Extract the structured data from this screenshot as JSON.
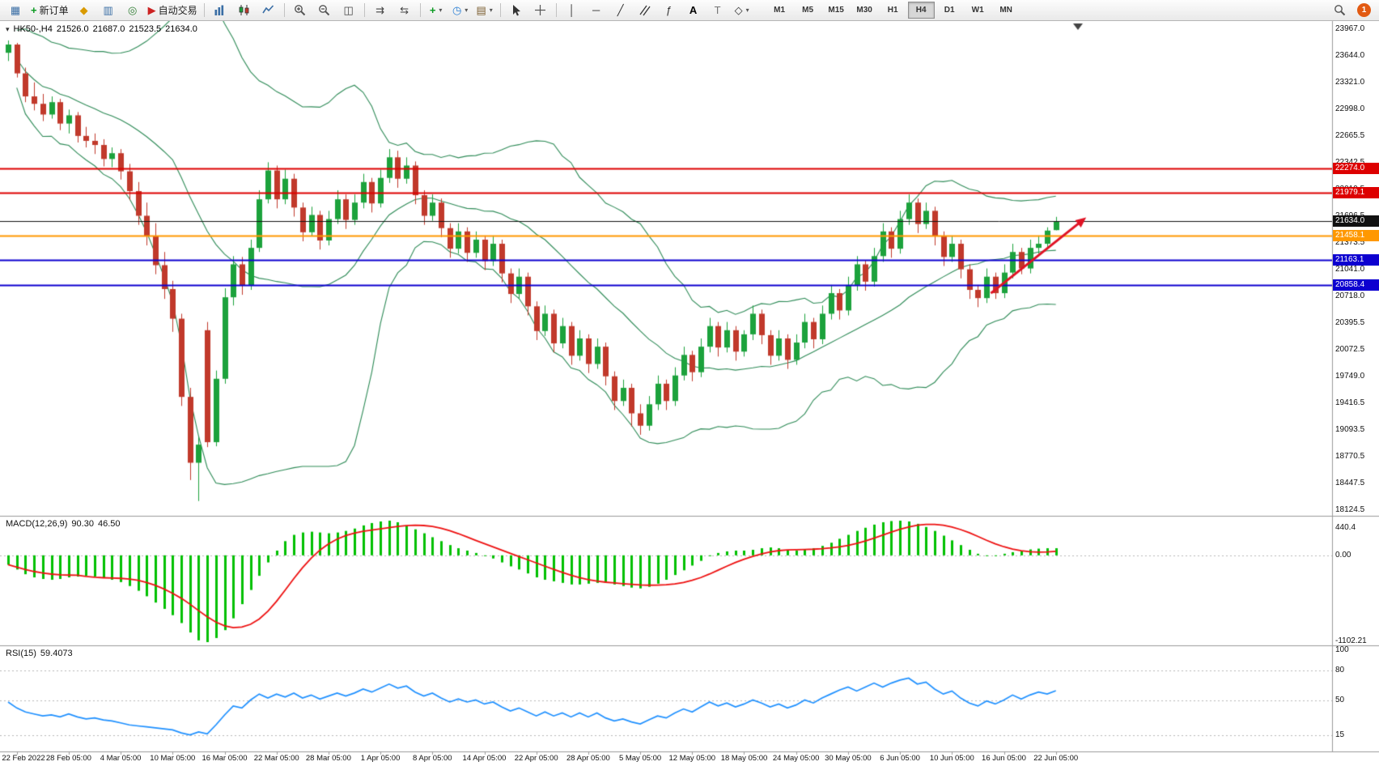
{
  "toolbar": {
    "groups": [
      {
        "items": [
          {
            "name": "chart-window-icon"
          },
          {
            "name": "new-order-icon",
            "label": "新订单"
          },
          {
            "name": "market-watch-icon"
          },
          {
            "name": "data-window-icon"
          },
          {
            "name": "strategy-tester-icon"
          },
          {
            "name": "autotrading-icon",
            "label": "自动交易"
          }
        ]
      },
      {
        "items": [
          {
            "name": "bar-chart-icon"
          },
          {
            "name": "candlestick-chart-icon"
          },
          {
            "name": "line-chart-icon"
          }
        ]
      },
      {
        "items": [
          {
            "name": "zoom-in-icon"
          },
          {
            "name": "zoom-out-icon"
          },
          {
            "name": "tile-windows-icon"
          }
        ]
      },
      {
        "items": [
          {
            "name": "auto-scroll-icon"
          },
          {
            "name": "chart-shift-icon"
          }
        ]
      },
      {
        "items": [
          {
            "name": "add-indicator-icon",
            "caret": true
          },
          {
            "name": "period-selector-icon",
            "caret": true
          },
          {
            "name": "template-icon",
            "caret": true
          }
        ]
      },
      {
        "items": [
          {
            "name": "cursor-icon"
          },
          {
            "name": "crosshair-icon"
          }
        ]
      },
      {
        "items": [
          {
            "name": "vertical-line-icon"
          },
          {
            "name": "horizontal-line-icon"
          },
          {
            "name": "trendline-icon"
          },
          {
            "name": "equidistant-channel-icon"
          },
          {
            "name": "fibonacci-icon"
          },
          {
            "name": "text-icon",
            "label": "A"
          },
          {
            "name": "text-label-icon"
          },
          {
            "name": "shapes-icon",
            "caret": true
          }
        ]
      }
    ],
    "timeframes": [
      "M1",
      "M5",
      "M15",
      "M30",
      "H1",
      "H4",
      "D1",
      "W1",
      "MN"
    ],
    "active_timeframe": "H4",
    "notification_count": "1"
  },
  "chart": {
    "symbol_period": "HK50-,H4",
    "open": "21526.0",
    "high": "21687.0",
    "low": "21523.5",
    "close": "21634.0"
  },
  "price_axis": {
    "ticks": [
      "23967.0",
      "23644.0",
      "23321.0",
      "22998.0",
      "22665.5",
      "22342.5",
      "22019.5",
      "21696.5",
      "21373.5",
      "21041.0",
      "20718.0",
      "20395.5",
      "20072.5",
      "19749.0",
      "19416.5",
      "19093.5",
      "18770.5",
      "18447.5",
      "18124.5"
    ]
  },
  "price_lines": [
    {
      "label": "22274.0",
      "price": 22274.0,
      "color": "#dd0000",
      "width": 2,
      "kind": "resistance"
    },
    {
      "label": "21979.1",
      "price": 21979.1,
      "color": "#dd0000",
      "width": 2,
      "kind": "resistance"
    },
    {
      "label": "21634.0",
      "price": 21634.0,
      "color": "#111111",
      "width": 1,
      "kind": "current-price"
    },
    {
      "label": "21458.1",
      "price": 21458.1,
      "color": "#ff9800",
      "width": 2,
      "kind": "pivot"
    },
    {
      "label": "21163.1",
      "price": 21163.1,
      "color": "#0d00d0",
      "width": 2,
      "kind": "support"
    },
    {
      "label": "20858.4",
      "price": 20858.4,
      "color": "#0d00d0",
      "width": 2,
      "kind": "support"
    }
  ],
  "annotation_arrow": {
    "from_index": 113.5,
    "from_price": 20760,
    "to_index": 124.5,
    "to_price": 21680,
    "color": "#e01325"
  },
  "indicators": {
    "macd": {
      "title": "MACD(12,26,9)",
      "value_main": "90.30",
      "value_signal": "46.50",
      "axis_max_label": "440.4",
      "axis_zero_label": "0.00",
      "axis_min_label": "-1102.21",
      "axis_max": 440.4,
      "axis_min": -1102.21
    },
    "rsi": {
      "title": "RSI(15)",
      "value": "59.4073",
      "levels": [
        80,
        50,
        15
      ],
      "axis_labels": [
        "100",
        "80",
        "50",
        "15"
      ]
    }
  },
  "time_axis": {
    "first_index": 1,
    "step": 6,
    "labels": [
      "22 Feb 2022",
      "28 Feb 05:00",
      "4 Mar 05:00",
      "10 Mar 05:00",
      "16 Mar 05:00",
      "22 Mar 05:00",
      "28 Mar 05:00",
      "1 Apr 05:00",
      "8 Apr 05:00",
      "14 Apr 05:00",
      "22 Apr 05:00",
      "28 Apr 05:00",
      "5 May 05:00",
      "12 May 05:00",
      "18 May 05:00",
      "24 May 05:00",
      "30 May 05:00",
      "6 Jun 05:00",
      "10 Jun 05:00",
      "16 Jun 05:00",
      "22 Jun 05:00"
    ]
  },
  "colors": {
    "bull": "#1ca23c",
    "bear": "#c1392b",
    "bollinger": "#2e8b57",
    "macd_histogram": "#00c000",
    "macd_signal": "#ee1111",
    "rsi_line": "#1e90ff",
    "grid_dash": "#b8b8b8",
    "frame": "#9a9a9a"
  },
  "chart_data": {
    "type": "candlestick",
    "symbol": "HK50-",
    "period": "H4",
    "price_range": [
      18124.5,
      23967.0
    ],
    "overlays": {
      "bollinger_period": 20,
      "bollinger_deviation": 2
    },
    "candles": [
      [
        23680,
        23830,
        23580,
        23780
      ],
      [
        23780,
        23800,
        23380,
        23430
      ],
      [
        23430,
        23500,
        23080,
        23150
      ],
      [
        23150,
        23320,
        22980,
        23060
      ],
      [
        23060,
        23180,
        22850,
        22930
      ],
      [
        22930,
        23150,
        22880,
        23080
      ],
      [
        23080,
        23120,
        22740,
        22820
      ],
      [
        22820,
        22990,
        22700,
        22920
      ],
      [
        22920,
        22960,
        22590,
        22670
      ],
      [
        22670,
        22780,
        22530,
        22610
      ],
      [
        22610,
        22700,
        22450,
        22560
      ],
      [
        22560,
        22630,
        22300,
        22390
      ],
      [
        22390,
        22530,
        22290,
        22460
      ],
      [
        22460,
        22510,
        22140,
        22240
      ],
      [
        22240,
        22330,
        21890,
        22000
      ],
      [
        22000,
        22110,
        21590,
        21700
      ],
      [
        21700,
        21860,
        21340,
        21450
      ],
      [
        21450,
        21610,
        20990,
        21100
      ],
      [
        21100,
        21260,
        20690,
        20810
      ],
      [
        20810,
        20910,
        20290,
        20450
      ],
      [
        20450,
        20510,
        19390,
        19500
      ],
      [
        19500,
        19610,
        18490,
        18700
      ],
      [
        18700,
        19010,
        18235,
        18920
      ],
      [
        20310,
        20410,
        18890,
        18950
      ],
      [
        18950,
        19820,
        18900,
        19720
      ],
      [
        19720,
        20820,
        19660,
        20710
      ],
      [
        20710,
        21210,
        20610,
        21110
      ],
      [
        21110,
        21200,
        20740,
        20850
      ],
      [
        20850,
        21410,
        20800,
        21310
      ],
      [
        21310,
        22010,
        21260,
        21900
      ],
      [
        21900,
        22350,
        21850,
        22250
      ],
      [
        22250,
        22310,
        21790,
        21900
      ],
      [
        21900,
        22260,
        21840,
        22150
      ],
      [
        22150,
        22210,
        21690,
        21800
      ],
      [
        21800,
        21860,
        21390,
        21500
      ],
      [
        21500,
        21810,
        21450,
        21710
      ],
      [
        21710,
        21760,
        21290,
        21400
      ],
      [
        21400,
        21760,
        21340,
        21660
      ],
      [
        21660,
        22010,
        21600,
        21900
      ],
      [
        21900,
        21960,
        21540,
        21650
      ],
      [
        21650,
        21960,
        21590,
        21860
      ],
      [
        21860,
        22210,
        21790,
        22110
      ],
      [
        22110,
        22160,
        21740,
        21850
      ],
      [
        21850,
        22260,
        21800,
        22160
      ],
      [
        22160,
        22510,
        22100,
        22410
      ],
      [
        22410,
        22490,
        22040,
        22150
      ],
      [
        22150,
        22410,
        22090,
        22310
      ],
      [
        22310,
        22360,
        21840,
        21950
      ],
      [
        21950,
        22010,
        21590,
        21700
      ],
      [
        21700,
        21960,
        21640,
        21860
      ],
      [
        21860,
        21910,
        21440,
        21550
      ],
      [
        21550,
        21610,
        21190,
        21300
      ],
      [
        21300,
        21610,
        21240,
        21510
      ],
      [
        21510,
        21560,
        21140,
        21250
      ],
      [
        21250,
        21510,
        21190,
        21410
      ],
      [
        21410,
        21460,
        21040,
        21150
      ],
      [
        21150,
        21460,
        21090,
        21360
      ],
      [
        21360,
        21410,
        20890,
        21000
      ],
      [
        21000,
        21060,
        20640,
        20750
      ],
      [
        20750,
        21060,
        20690,
        20960
      ],
      [
        20960,
        21010,
        20490,
        20600
      ],
      [
        20600,
        20660,
        20190,
        20300
      ],
      [
        20300,
        20610,
        20240,
        20510
      ],
      [
        20510,
        20560,
        20040,
        20150
      ],
      [
        20150,
        20460,
        20090,
        20360
      ],
      [
        20360,
        20410,
        19890,
        20000
      ],
      [
        20000,
        20310,
        19940,
        20210
      ],
      [
        20210,
        20260,
        19790,
        19900
      ],
      [
        19900,
        20210,
        19840,
        20110
      ],
      [
        20110,
        20160,
        19640,
        19750
      ],
      [
        19750,
        19810,
        19340,
        19450
      ],
      [
        19450,
        19710,
        19390,
        19610
      ],
      [
        19610,
        19660,
        19140,
        19300
      ],
      [
        19300,
        19410,
        19040,
        19150
      ],
      [
        19150,
        19510,
        19090,
        19410
      ],
      [
        19410,
        19760,
        19340,
        19660
      ],
      [
        19660,
        19710,
        19340,
        19450
      ],
      [
        19450,
        19860,
        19390,
        19760
      ],
      [
        19760,
        20110,
        19700,
        20010
      ],
      [
        20010,
        20060,
        19690,
        19800
      ],
      [
        19800,
        20210,
        19740,
        20110
      ],
      [
        20110,
        20460,
        20040,
        20360
      ],
      [
        20360,
        20410,
        19990,
        20100
      ],
      [
        20100,
        20410,
        20040,
        20310
      ],
      [
        20310,
        20360,
        19940,
        20050
      ],
      [
        20050,
        20310,
        19990,
        20260
      ],
      [
        20260,
        20610,
        20190,
        20510
      ],
      [
        20510,
        20560,
        20140,
        20250
      ],
      [
        20250,
        20310,
        19890,
        20000
      ],
      [
        20000,
        20310,
        19940,
        20210
      ],
      [
        20210,
        20260,
        19840,
        19950
      ],
      [
        19950,
        20260,
        19890,
        20160
      ],
      [
        20160,
        20510,
        20090,
        20410
      ],
      [
        20410,
        20460,
        20090,
        20200
      ],
      [
        20200,
        20610,
        20140,
        20510
      ],
      [
        20510,
        20860,
        20440,
        20760
      ],
      [
        20760,
        20810,
        20440,
        20550
      ],
      [
        20550,
        20960,
        20490,
        20860
      ],
      [
        20860,
        21210,
        20790,
        21110
      ],
      [
        21110,
        21160,
        20790,
        20900
      ],
      [
        20900,
        21310,
        20840,
        21210
      ],
      [
        21210,
        21610,
        21140,
        21510
      ],
      [
        21510,
        21560,
        21190,
        21300
      ],
      [
        21300,
        21760,
        21240,
        21660
      ],
      [
        21660,
        21960,
        21590,
        21860
      ],
      [
        21860,
        21910,
        21490,
        21600
      ],
      [
        21600,
        21860,
        21540,
        21760
      ],
      [
        21760,
        21810,
        21340,
        21450
      ],
      [
        21450,
        21510,
        21090,
        21200
      ],
      [
        21200,
        21460,
        21140,
        21360
      ],
      [
        21360,
        21410,
        20940,
        21050
      ],
      [
        21050,
        21110,
        20690,
        20800
      ],
      [
        20800,
        20860,
        20590,
        20700
      ],
      [
        20700,
        21060,
        20640,
        20960
      ],
      [
        20960,
        21010,
        20690,
        20760
      ],
      [
        20760,
        21110,
        20700,
        21010
      ],
      [
        21010,
        21360,
        20940,
        21260
      ],
      [
        21260,
        21310,
        20990,
        21060
      ],
      [
        21060,
        21410,
        21000,
        21310
      ],
      [
        21310,
        21460,
        21240,
        21360
      ],
      [
        21360,
        21560,
        21290,
        21520
      ],
      [
        21526,
        21687,
        21523.5,
        21634
      ]
    ],
    "sub_indicators": {
      "macd_histogram": [
        -120,
        -180,
        -240,
        -280,
        -300,
        -310,
        -300,
        -280,
        -270,
        -260,
        -270,
        -290,
        -310,
        -340,
        -390,
        -450,
        -520,
        -600,
        -680,
        -760,
        -860,
        -980,
        -1080,
        -1102,
        -1050,
        -950,
        -800,
        -620,
        -440,
        -260,
        -90,
        60,
        180,
        260,
        290,
        300,
        290,
        280,
        290,
        310,
        340,
        380,
        410,
        430,
        440,
        420,
        380,
        330,
        280,
        230,
        180,
        130,
        90,
        60,
        30,
        0,
        -40,
        -90,
        -140,
        -180,
        -230,
        -280,
        -310,
        -330,
        -350,
        -370,
        -370,
        -360,
        -350,
        -350,
        -370,
        -390,
        -410,
        -420,
        -400,
        -360,
        -310,
        -250,
        -190,
        -130,
        -70,
        -10,
        30,
        50,
        60,
        60,
        70,
        90,
        100,
        90,
        70,
        60,
        70,
        90,
        120,
        160,
        210,
        260,
        310,
        350,
        390,
        420,
        435,
        440,
        430,
        400,
        360,
        310,
        250,
        190,
        130,
        70,
        20,
        -10,
        0,
        20,
        40,
        60,
        75,
        85,
        90,
        90.3
      ],
      "rsi": [
        48,
        42,
        38,
        36,
        34,
        35,
        33,
        36,
        33,
        31,
        32,
        30,
        29,
        27,
        25,
        24,
        23,
        22,
        21,
        20,
        17,
        15,
        18,
        16,
        25,
        35,
        44,
        42,
        50,
        56,
        52,
        56,
        53,
        57,
        52,
        55,
        51,
        54,
        57,
        54,
        57,
        61,
        58,
        62,
        66,
        62,
        64,
        58,
        54,
        57,
        52,
        48,
        51,
        48,
        50,
        46,
        48,
        43,
        39,
        42,
        38,
        34,
        38,
        34,
        37,
        33,
        37,
        33,
        37,
        32,
        29,
        31,
        28,
        26,
        30,
        34,
        32,
        37,
        41,
        38,
        43,
        48,
        44,
        47,
        43,
        46,
        50,
        47,
        43,
        46,
        42,
        45,
        50,
        47,
        52,
        56,
        60,
        63,
        59,
        63,
        67,
        63,
        67,
        70,
        72,
        66,
        68,
        61,
        56,
        59,
        52,
        47,
        44,
        49,
        46,
        50,
        55,
        51,
        55,
        58,
        56,
        59.41
      ]
    }
  }
}
